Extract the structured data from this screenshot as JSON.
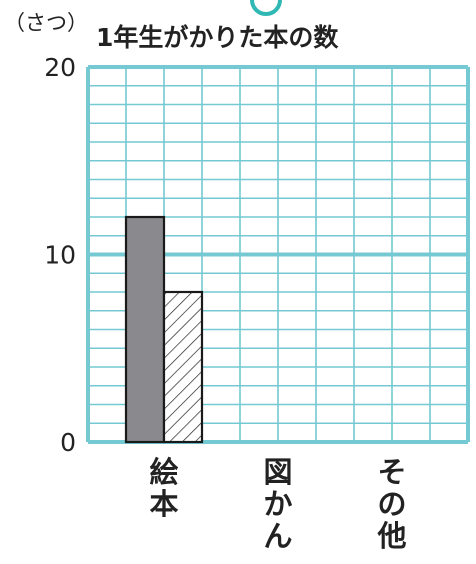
{
  "chart_data": {
    "type": "bar",
    "title": "1年生がかりた本の数",
    "unit_label": "（さつ）",
    "ylim": [
      0,
      20
    ],
    "ytick_labels": [
      "0",
      "10",
      "20"
    ],
    "categories": [
      "絵本",
      "図かん",
      "その他"
    ],
    "series": [
      {
        "values": [
          12,
          null,
          null
        ],
        "fill": "#8a8a8e",
        "pattern": "solid"
      },
      {
        "values": [
          8,
          null,
          null
        ],
        "fill": "#ffffff",
        "pattern": "hatch"
      }
    ],
    "grid": true,
    "grid_color": "#74c9d2",
    "legend": "none"
  }
}
